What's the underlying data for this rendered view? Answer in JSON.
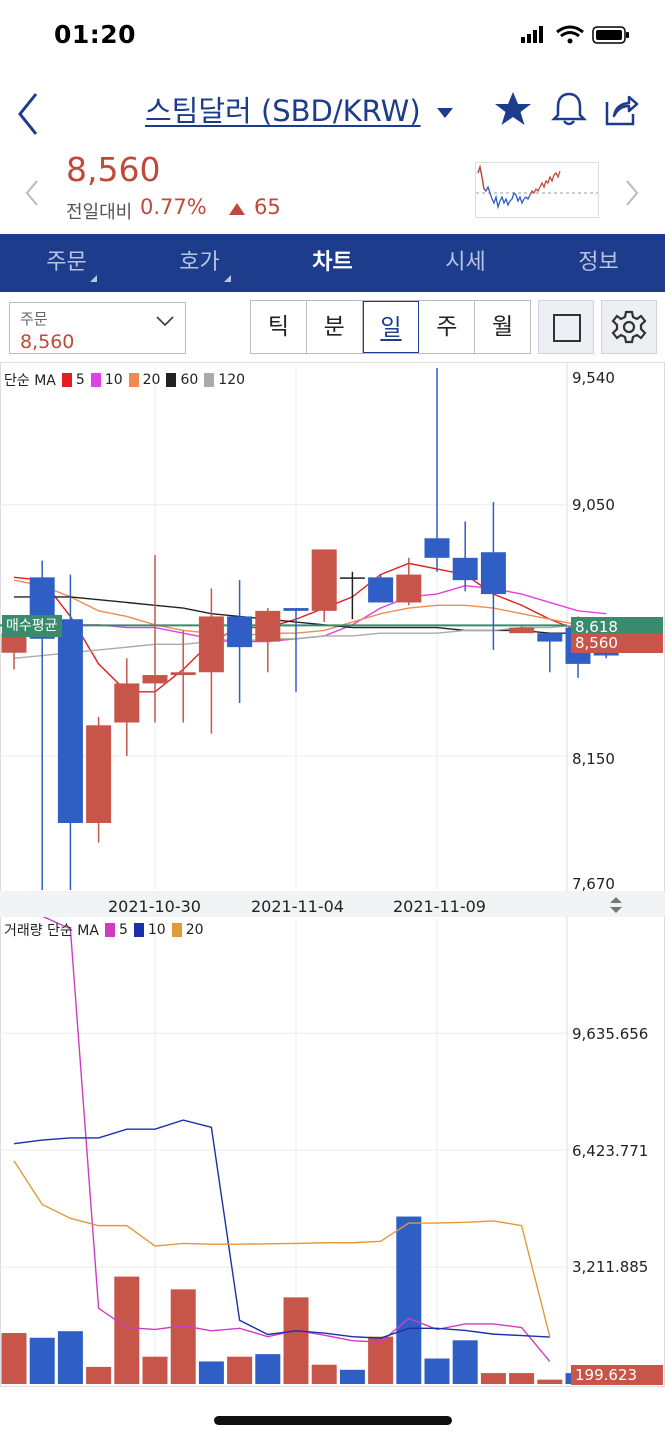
{
  "status": {
    "time": "01:20"
  },
  "header": {
    "title": "스팀달러 (SBD/KRW)"
  },
  "price": {
    "current": "8,560",
    "change_label": "전일대비",
    "change_pct": "0.77%",
    "change_amt": "65"
  },
  "tabs": [
    {
      "label": "주문"
    },
    {
      "label": "호가"
    },
    {
      "label": "차트"
    },
    {
      "label": "시세"
    },
    {
      "label": "정보"
    }
  ],
  "toolbar": {
    "order_label": "주문",
    "order_value": "8,560",
    "periods": [
      "틱",
      "분",
      "일",
      "주",
      "월"
    ],
    "active_period": "일"
  },
  "colors": {
    "up": "#c8554a",
    "down": "#2f5fc4",
    "brand": "#1e3c8c",
    "avg": "#3a8a6e"
  },
  "chart_data": [
    {
      "type": "candlestick",
      "legend": {
        "prefix": "단순 MA",
        "items": [
          {
            "label": "5",
            "color": "#e02020"
          },
          {
            "label": "10",
            "color": "#e040e8"
          },
          {
            "label": "20",
            "color": "#f08a50"
          },
          {
            "label": "60",
            "color": "#222222"
          },
          {
            "label": "120",
            "color": "#aaaaaa"
          }
        ]
      },
      "y_ticks": [
        "9,540",
        "9,050",
        "8,150",
        "7,670"
      ],
      "ylim": [
        7670,
        9540
      ],
      "x_labels": [
        {
          "label": "2021-10-30",
          "index": 5
        },
        {
          "label": "2021-11-04",
          "index": 10
        },
        {
          "label": "2021-11-09",
          "index": 15
        }
      ],
      "avg_buy": {
        "label": "매수평균",
        "value": 8618,
        "display": "8,618"
      },
      "last_price": {
        "value": 8560,
        "display": "8,560"
      },
      "candles": [
        {
          "o": 8520,
          "h": 8650,
          "l": 8460,
          "c": 8590
        },
        {
          "o": 8790,
          "h": 8850,
          "l": 7670,
          "c": 8570
        },
        {
          "o": 8640,
          "h": 8800,
          "l": 7670,
          "c": 7910
        },
        {
          "o": 7910,
          "h": 8290,
          "l": 7840,
          "c": 8260
        },
        {
          "o": 8270,
          "h": 8500,
          "l": 8150,
          "c": 8410
        },
        {
          "o": 8410,
          "h": 8870,
          "l": 8270,
          "c": 8440
        },
        {
          "o": 8440,
          "h": 8600,
          "l": 8270,
          "c": 8450
        },
        {
          "o": 8450,
          "h": 8750,
          "l": 8230,
          "c": 8650
        },
        {
          "o": 8650,
          "h": 8780,
          "l": 8340,
          "c": 8540
        },
        {
          "o": 8560,
          "h": 8680,
          "l": 8450,
          "c": 8670
        },
        {
          "o": 8680,
          "h": 8680,
          "l": 8380,
          "c": 8670
        },
        {
          "o": 8670,
          "h": 8890,
          "l": 8630,
          "c": 8890
        },
        {
          "o": 8790,
          "h": 8810,
          "l": 8640,
          "c": 8790
        },
        {
          "o": 8790,
          "h": 8800,
          "l": 8700,
          "c": 8700
        },
        {
          "o": 8700,
          "h": 8860,
          "l": 8690,
          "c": 8800
        },
        {
          "o": 8930,
          "h": 9540,
          "l": 8810,
          "c": 8860
        },
        {
          "o": 8860,
          "h": 8990,
          "l": 8740,
          "c": 8780
        },
        {
          "o": 8880,
          "h": 9060,
          "l": 8530,
          "c": 8730
        },
        {
          "o": 8590,
          "h": 8620,
          "l": 8600,
          "c": 8610
        },
        {
          "o": 8590,
          "h": 8590,
          "l": 8450,
          "c": 8560
        },
        {
          "o": 8610,
          "h": 8650,
          "l": 8430,
          "c": 8480
        },
        {
          "o": 8560,
          "h": 8620,
          "l": 8500,
          "c": 8510
        }
      ],
      "ma": {
        "5": [
          8790,
          8780,
          8650,
          8480,
          8380,
          8380,
          8460,
          8560,
          8610,
          8610,
          8640,
          8680,
          8720,
          8800,
          8840,
          8820,
          8800,
          8730,
          8690,
          8640,
          8600,
          8570
        ],
        "10": [
          8620,
          8620,
          8620,
          8620,
          8610,
          8610,
          8590,
          8570,
          8560,
          8560,
          8570,
          8580,
          8620,
          8680,
          8720,
          8730,
          8760,
          8750,
          8730,
          8700,
          8670,
          8660
        ],
        "20": [
          8780,
          8760,
          8720,
          8670,
          8650,
          8620,
          8600,
          8590,
          8580,
          8590,
          8590,
          8600,
          8630,
          8660,
          8680,
          8690,
          8690,
          8680,
          8660,
          8640,
          8620,
          8600
        ],
        "60": [
          8720,
          8720,
          8720,
          8710,
          8700,
          8690,
          8680,
          8660,
          8650,
          8640,
          8630,
          8620,
          8610,
          8610,
          8610,
          8610,
          8600,
          8600,
          8600,
          8590,
          8590,
          8590
        ],
        "120": [
          8500,
          8510,
          8520,
          8530,
          8540,
          8550,
          8550,
          8560,
          8560,
          8570,
          8570,
          8580,
          8580,
          8590,
          8590,
          8590,
          8600,
          8600,
          8610,
          8610,
          8620,
          8620
        ]
      }
    },
    {
      "type": "bar",
      "legend": {
        "prefix": "거래량 단순 MA",
        "items": [
          {
            "label": "5",
            "color": "#d03cc0"
          },
          {
            "label": "10",
            "color": "#1b2fa8"
          },
          {
            "label": "20",
            "color": "#e09a38"
          }
        ]
      },
      "y_ticks": [
        "9,635.656",
        "6,423.771",
        "3,211.885"
      ],
      "ylim": [
        0,
        12800
      ],
      "last_value": {
        "value": 199.623,
        "display": "199.623"
      },
      "volumes": [
        1400,
        1270,
        1450,
        470,
        2950,
        750,
        2600,
        620,
        750,
        820,
        2380,
        530,
        390,
        1300,
        4600,
        700,
        1200,
        300,
        300,
        120,
        300,
        200
      ],
      "vol_up": [
        true,
        false,
        false,
        true,
        true,
        true,
        true,
        false,
        true,
        false,
        true,
        true,
        false,
        true,
        false,
        false,
        false,
        true,
        true,
        true,
        false,
        true
      ],
      "ma": {
        "5": [
          13000,
          12850,
          12500,
          2080,
          1550,
          1500,
          1600,
          1460,
          1530,
          1300,
          1470,
          1340,
          1190,
          1150,
          1800,
          1500,
          1650,
          1650,
          1550,
          620,
          null,
          null
        ],
        "10": [
          6600,
          6700,
          6760,
          6760,
          7000,
          7000,
          7250,
          7050,
          1750,
          1360,
          1460,
          1400,
          1300,
          1260,
          1530,
          1530,
          1470,
          1370,
          1330,
          1290,
          null,
          null
        ],
        "20": [
          6130,
          4930,
          4550,
          4350,
          4350,
          3790,
          3860,
          3840,
          3840,
          3850,
          3860,
          3880,
          3880,
          3920,
          4420,
          4420,
          4440,
          4480,
          4350,
          1300,
          null,
          null
        ]
      }
    }
  ]
}
